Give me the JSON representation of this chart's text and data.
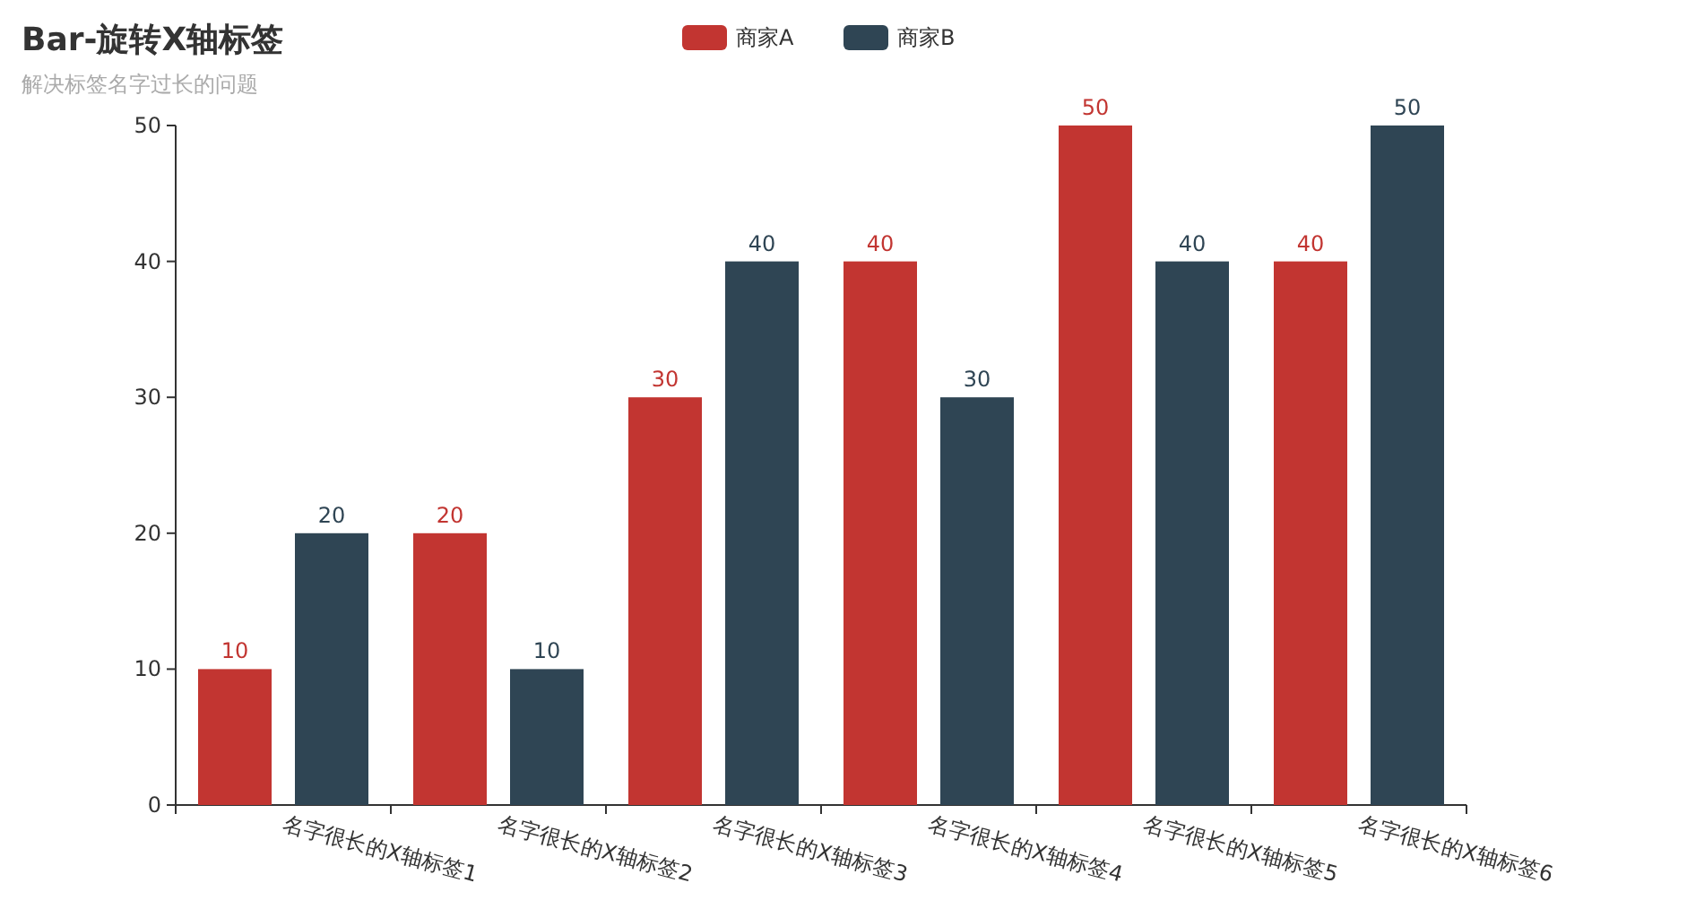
{
  "chart_data": {
    "type": "bar",
    "title": "Bar-旋转X轴标签",
    "subtitle": "解决标签名字过长的问题",
    "categories": [
      "名字很长的X轴标签1",
      "名字很长的X轴标签2",
      "名字很长的X轴标签3",
      "名字很长的X轴标签4",
      "名字很长的X轴标签5",
      "名字很长的X轴标签6"
    ],
    "series": [
      {
        "name": "商家A",
        "color": "#c23531",
        "values": [
          10,
          20,
          30,
          40,
          50,
          40
        ]
      },
      {
        "name": "商家B",
        "color": "#2f4554",
        "values": [
          20,
          10,
          40,
          30,
          40,
          50
        ]
      }
    ],
    "ylim": [
      0,
      50
    ],
    "yticks": [
      0,
      10,
      20,
      30,
      40,
      50
    ],
    "grid": false,
    "legend": "top",
    "data_labels": true
  }
}
